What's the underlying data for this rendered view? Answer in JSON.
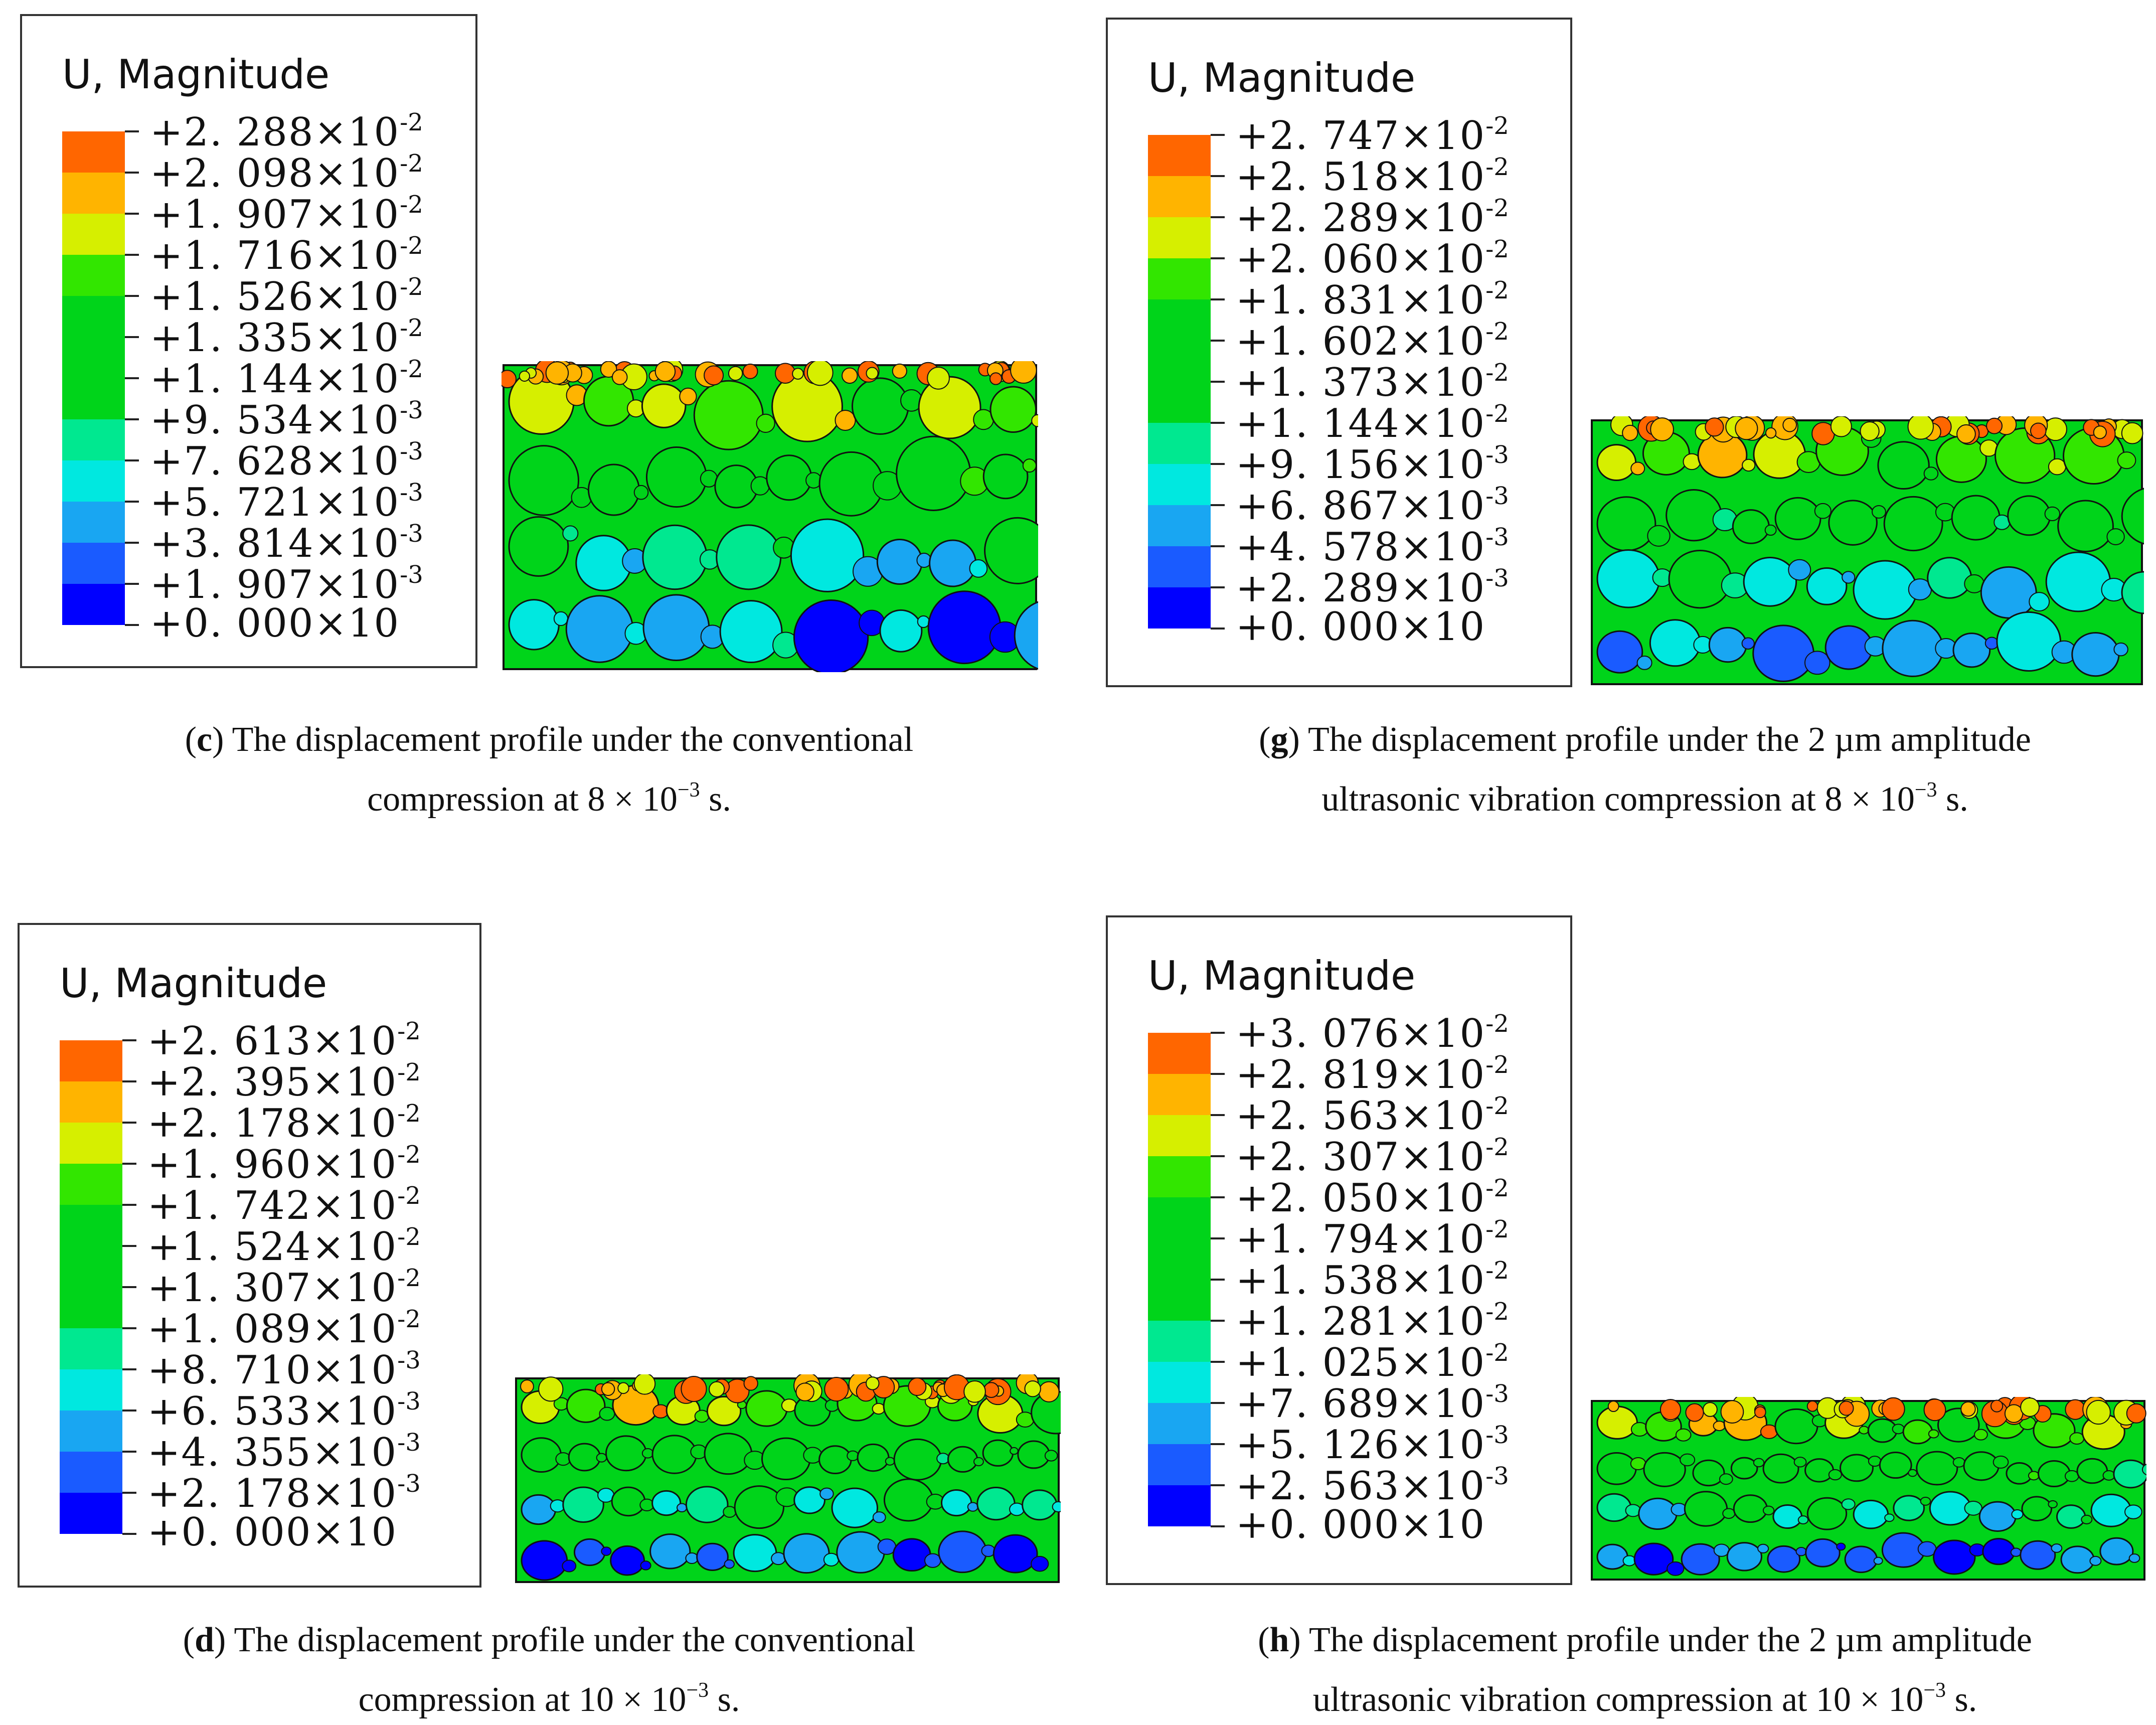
{
  "legend_title": "U, Magnitude",
  "times_sign": "×",
  "band_colors": [
    "#0000ff",
    "#1a5bff",
    "#19a6f2",
    "#00e8e0",
    "#00e890",
    "#00d41a",
    "#00d41a",
    "#00d41a",
    "#32e600",
    "#d6ef00",
    "#ffb400",
    "#ff6600",
    "#ff0000"
  ],
  "panels": [
    {
      "letter": "c",
      "caption_line1": "The displacement profile under the conventional",
      "caption_line2_pre": "compression at 8 × 10",
      "caption_line2_exp": "−3",
      "caption_line2_post": " s.",
      "compaction": 0.0,
      "levels": [
        {
          "mantissa": "+2. 288",
          "base": "10",
          "exp": "-2"
        },
        {
          "mantissa": "+2. 098",
          "base": "10",
          "exp": "-2"
        },
        {
          "mantissa": "+1. 907",
          "base": "10",
          "exp": "-2"
        },
        {
          "mantissa": "+1. 716",
          "base": "10",
          "exp": "-2"
        },
        {
          "mantissa": "+1. 526",
          "base": "10",
          "exp": "-2"
        },
        {
          "mantissa": "+1. 335",
          "base": "10",
          "exp": "-2"
        },
        {
          "mantissa": "+1. 144",
          "base": "10",
          "exp": "-2"
        },
        {
          "mantissa": "+9. 534",
          "base": "10",
          "exp": "-3"
        },
        {
          "mantissa": "+7. 628",
          "base": "10",
          "exp": "-3"
        },
        {
          "mantissa": "+5. 721",
          "base": "10",
          "exp": "-3"
        },
        {
          "mantissa": "+3. 814",
          "base": "10",
          "exp": "-3"
        },
        {
          "mantissa": "+1. 907",
          "base": "10",
          "exp": "-3"
        },
        {
          "mantissa": "+0. 000",
          "base": "10",
          "exp": ""
        }
      ]
    },
    {
      "letter": "g",
      "caption_line1": "The displacement profile under the 2 µm amplitude",
      "caption_line2_pre": "ultrasonic vibration compression at 8 × 10",
      "caption_line2_exp": "−3",
      "caption_line2_post": " s.",
      "compaction": 0.3,
      "levels": [
        {
          "mantissa": "+2. 747",
          "base": "10",
          "exp": "-2"
        },
        {
          "mantissa": "+2. 518",
          "base": "10",
          "exp": "-2"
        },
        {
          "mantissa": "+2. 289",
          "base": "10",
          "exp": "-2"
        },
        {
          "mantissa": "+2. 060",
          "base": "10",
          "exp": "-2"
        },
        {
          "mantissa": "+1. 831",
          "base": "10",
          "exp": "-2"
        },
        {
          "mantissa": "+1. 602",
          "base": "10",
          "exp": "-2"
        },
        {
          "mantissa": "+1. 373",
          "base": "10",
          "exp": "-2"
        },
        {
          "mantissa": "+1. 144",
          "base": "10",
          "exp": "-2"
        },
        {
          "mantissa": "+9. 156",
          "base": "10",
          "exp": "-3"
        },
        {
          "mantissa": "+6. 867",
          "base": "10",
          "exp": "-3"
        },
        {
          "mantissa": "+4. 578",
          "base": "10",
          "exp": "-3"
        },
        {
          "mantissa": "+2. 289",
          "base": "10",
          "exp": "-3"
        },
        {
          "mantissa": "+0. 000",
          "base": "10",
          "exp": ""
        }
      ]
    },
    {
      "letter": "d",
      "caption_line1": "The displacement profile under the conventional",
      "caption_line2_pre": "compression at 10 × 10",
      "caption_line2_exp": "−3",
      "caption_line2_post": " s.",
      "compaction": 0.55,
      "levels": [
        {
          "mantissa": "+2. 613",
          "base": "10",
          "exp": "-2"
        },
        {
          "mantissa": "+2. 395",
          "base": "10",
          "exp": "-2"
        },
        {
          "mantissa": "+2. 178",
          "base": "10",
          "exp": "-2"
        },
        {
          "mantissa": "+1. 960",
          "base": "10",
          "exp": "-2"
        },
        {
          "mantissa": "+1. 742",
          "base": "10",
          "exp": "-2"
        },
        {
          "mantissa": "+1. 524",
          "base": "10",
          "exp": "-2"
        },
        {
          "mantissa": "+1. 307",
          "base": "10",
          "exp": "-2"
        },
        {
          "mantissa": "+1. 089",
          "base": "10",
          "exp": "-2"
        },
        {
          "mantissa": "+8. 710",
          "base": "10",
          "exp": "-3"
        },
        {
          "mantissa": "+6. 533",
          "base": "10",
          "exp": "-3"
        },
        {
          "mantissa": "+4. 355",
          "base": "10",
          "exp": "-3"
        },
        {
          "mantissa": "+2. 178",
          "base": "10",
          "exp": "-3"
        },
        {
          "mantissa": "+0. 000",
          "base": "10",
          "exp": ""
        }
      ]
    },
    {
      "letter": "h",
      "caption_line1": "The displacement profile under the 2 µm amplitude",
      "caption_line2_pre": "ultrasonic vibration compression at 10 × 10",
      "caption_line2_exp": "−3",
      "caption_line2_post": " s.",
      "compaction": 0.75,
      "levels": [
        {
          "mantissa": "+3. 076",
          "base": "10",
          "exp": "-2"
        },
        {
          "mantissa": "+2. 819",
          "base": "10",
          "exp": "-2"
        },
        {
          "mantissa": "+2. 563",
          "base": "10",
          "exp": "-2"
        },
        {
          "mantissa": "+2. 307",
          "base": "10",
          "exp": "-2"
        },
        {
          "mantissa": "+2. 050",
          "base": "10",
          "exp": "-2"
        },
        {
          "mantissa": "+1. 794",
          "base": "10",
          "exp": "-2"
        },
        {
          "mantissa": "+1. 538",
          "base": "10",
          "exp": "-2"
        },
        {
          "mantissa": "+1. 281",
          "base": "10",
          "exp": "-2"
        },
        {
          "mantissa": "+1. 025",
          "base": "10",
          "exp": "-2"
        },
        {
          "mantissa": "+7. 689",
          "base": "10",
          "exp": "-3"
        },
        {
          "mantissa": "+5. 126",
          "base": "10",
          "exp": "-3"
        },
        {
          "mantissa": "+2. 563",
          "base": "10",
          "exp": "-3"
        },
        {
          "mantissa": "+0. 000",
          "base": "10",
          "exp": ""
        }
      ]
    }
  ]
}
